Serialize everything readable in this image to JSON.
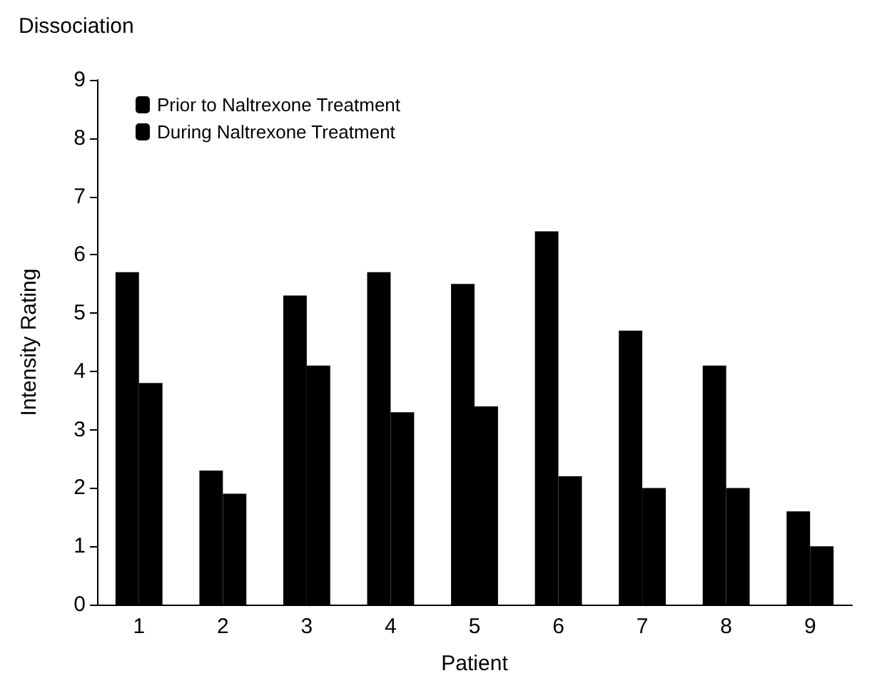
{
  "chart_data": {
    "type": "bar",
    "title": "Dissociation",
    "xlabel": "Patient",
    "ylabel": "Intensity Rating",
    "categories": [
      "1",
      "2",
      "3",
      "4",
      "5",
      "6",
      "7",
      "8",
      "9"
    ],
    "series": [
      {
        "name": "Prior to Naltrexone Treatment",
        "color": "#000000",
        "values": [
          5.7,
          2.3,
          5.3,
          5.7,
          5.5,
          6.4,
          4.7,
          4.1,
          1.6
        ]
      },
      {
        "name": "During Naltrexone Treatment",
        "color": "#000000",
        "values": [
          3.8,
          1.9,
          4.1,
          3.3,
          3.4,
          2.2,
          2.0,
          2.0,
          1.0
        ]
      }
    ],
    "ylim": [
      0,
      9
    ],
    "yticks": [
      0,
      1,
      2,
      3,
      4,
      5,
      6,
      7,
      8,
      9
    ],
    "grid": false,
    "legend": "top left"
  }
}
